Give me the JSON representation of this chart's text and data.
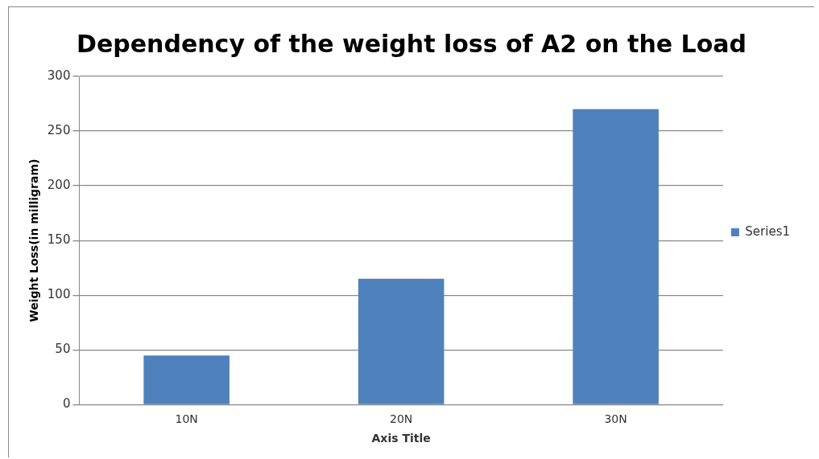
{
  "chart_data": {
    "type": "bar",
    "title": "Dependency of the weight loss of A2 on the Load",
    "xlabel": "Axis Title",
    "ylabel": "Weight Loss(in milligram)",
    "categories": [
      "10N",
      "20N",
      "30N"
    ],
    "series": [
      {
        "name": "Series1",
        "color": "#4f81bd",
        "values": [
          45,
          115,
          270
        ]
      }
    ],
    "ylim": [
      0,
      300
    ],
    "yticks": [
      0,
      50,
      100,
      150,
      200,
      250,
      300
    ],
    "grid": "y",
    "legend": "right"
  }
}
